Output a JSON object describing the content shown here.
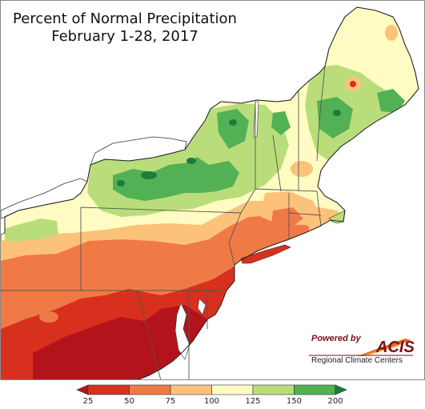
{
  "map": {
    "title_line1": "Percent of Normal Precipitation",
    "title_line2": "February 1-28, 2017",
    "region": "Northeast United States",
    "units": "percent of normal"
  },
  "logo": {
    "powered_by": "Powered by",
    "name": "ACIS",
    "subtitle": "Regional Climate Centers",
    "color": "#7a0f1c"
  },
  "legend": {
    "bins": [
      {
        "range": "<25",
        "color": "#b3141c"
      },
      {
        "range": "25-50",
        "color": "#d7301f"
      },
      {
        "range": "50-75",
        "color": "#f07a45"
      },
      {
        "range": "75-100",
        "color": "#fdc27a"
      },
      {
        "range": "100-125",
        "color": "#fefcc2"
      },
      {
        "range": "125-150",
        "color": "#b9dd7a"
      },
      {
        "range": "150-200",
        "color": "#52b155"
      },
      {
        "range": ">200",
        "color": "#1e7b3a"
      }
    ],
    "tick_labels": [
      "25",
      "50",
      "75",
      "100",
      "125",
      "150",
      "200"
    ]
  },
  "colors": {
    "water": "#ffffff",
    "state_border": "#555555",
    "county_border": "#9a9a7a"
  }
}
